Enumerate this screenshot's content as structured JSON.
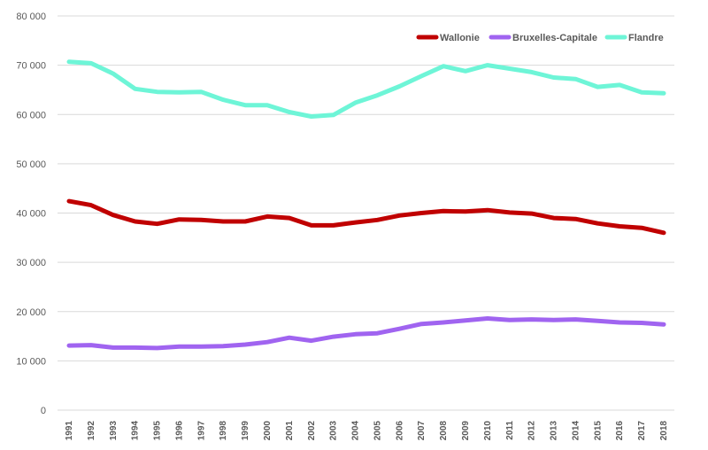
{
  "chart_data": {
    "type": "line",
    "title": "",
    "xlabel": "",
    "ylabel": "",
    "ylim": [
      0,
      80000
    ],
    "y_ticks": [
      0,
      10000,
      20000,
      30000,
      40000,
      50000,
      60000,
      70000,
      80000
    ],
    "y_tick_labels": [
      "0",
      "10 000",
      "20 000",
      "30 000",
      "40 000",
      "50 000",
      "60 000",
      "70 000",
      "80 000"
    ],
    "grid": true,
    "legend_position": "top-right",
    "x": [
      "1991",
      "1992",
      "1993",
      "1994",
      "1995",
      "1996",
      "1997",
      "1998",
      "1999",
      "2000",
      "2001",
      "2002",
      "2003",
      "2004",
      "2005",
      "2006",
      "2007",
      "2008",
      "2009",
      "2010",
      "2011",
      "2012",
      "2013",
      "2014",
      "2015",
      "2016",
      "2017",
      "2018"
    ],
    "series": [
      {
        "name": "Wallonie",
        "color": "#c00000",
        "values": [
          42400,
          41600,
          39600,
          38300,
          37800,
          38700,
          38600,
          38300,
          38300,
          39300,
          39000,
          37500,
          37500,
          38100,
          38600,
          39500,
          40000,
          40400,
          40300,
          40600,
          40100,
          39900,
          39000,
          38800,
          37900,
          37300,
          37000,
          36000
        ]
      },
      {
        "name": "Bruxelles-Capitale",
        "color": "#a064f0",
        "values": [
          13100,
          13200,
          12700,
          12700,
          12600,
          12900,
          12900,
          13000,
          13300,
          13800,
          14700,
          14100,
          14900,
          15400,
          15600,
          16500,
          17500,
          17800,
          18200,
          18600,
          18300,
          18400,
          18300,
          18400,
          18100,
          17800,
          17700,
          17400
        ]
      },
      {
        "name": "Flandre",
        "color": "#6ef5d7",
        "values": [
          70700,
          70400,
          68300,
          65200,
          64600,
          64500,
          64600,
          63000,
          61900,
          61900,
          60500,
          59600,
          59900,
          62400,
          63900,
          65700,
          67800,
          69800,
          68800,
          70000,
          69300,
          68600,
          67500,
          67200,
          65600,
          66000,
          64500,
          64300
        ]
      }
    ]
  }
}
